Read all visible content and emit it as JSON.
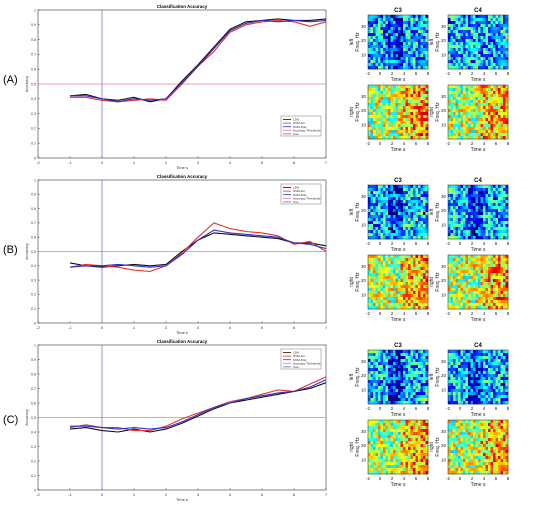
{
  "panel_labels": [
    "(A)",
    "(B)",
    "(C)"
  ],
  "chart_data": [
    {
      "type": "line",
      "panel": "(A)",
      "title": "Classification Accuracy",
      "xlabel": "Time s",
      "ylabel": "Accuracy",
      "xlim": [
        -2,
        7
      ],
      "ylim": [
        0,
        1
      ],
      "xticks": [
        -2,
        -1,
        0,
        1,
        2,
        3,
        4,
        5,
        6,
        7
      ],
      "yticks": [
        0,
        0.1,
        0.2,
        0.3,
        0.4,
        0.5,
        0.6,
        0.7,
        0.8,
        0.9,
        1
      ],
      "cue_x": 0,
      "threshold_y": 0.5,
      "legend": [
        "LDA",
        "SVM-Lin",
        "SVM-Poly",
        "Accuracy Threshold",
        "Cue"
      ],
      "legend_position": "lower right",
      "x": [
        -1,
        -0.5,
        0,
        0.5,
        1,
        1.5,
        2,
        2.5,
        3,
        3.5,
        4,
        4.5,
        5,
        5.5,
        6,
        6.5,
        7
      ],
      "series": [
        {
          "name": "LDA",
          "color": "#111111",
          "values": [
            0.42,
            0.43,
            0.4,
            0.39,
            0.41,
            0.38,
            0.4,
            0.52,
            0.63,
            0.75,
            0.87,
            0.92,
            0.93,
            0.94,
            0.93,
            0.93,
            0.94
          ]
        },
        {
          "name": "SVM-Lin",
          "color": "#e8302a",
          "values": [
            0.41,
            0.41,
            0.39,
            0.38,
            0.39,
            0.4,
            0.39,
            0.5,
            0.62,
            0.72,
            0.85,
            0.9,
            0.92,
            0.93,
            0.92,
            0.89,
            0.92
          ]
        },
        {
          "name": "SVM-Poly",
          "color": "#2f2fd6",
          "values": [
            0.42,
            0.42,
            0.4,
            0.38,
            0.4,
            0.39,
            0.4,
            0.51,
            0.62,
            0.74,
            0.86,
            0.91,
            0.93,
            0.92,
            0.93,
            0.92,
            0.93
          ]
        }
      ]
    },
    {
      "type": "line",
      "panel": "(B)",
      "title": "Classification Accuracy",
      "xlabel": "Time s",
      "ylabel": "Accuracy",
      "xlim": [
        -2,
        7
      ],
      "ylim": [
        0,
        1
      ],
      "xticks": [
        -2,
        -1,
        0,
        1,
        2,
        3,
        4,
        5,
        6,
        7
      ],
      "yticks": [
        0,
        0.1,
        0.2,
        0.3,
        0.4,
        0.5,
        0.6,
        0.7,
        0.8,
        0.9,
        1
      ],
      "cue_x": 0,
      "threshold_y": 0.5,
      "legend": [
        "LDA",
        "SVM-Lin",
        "SVM-Poly",
        "Accuracy Threshold",
        "Cue"
      ],
      "legend_position": "top right",
      "x": [
        -1,
        -0.5,
        0,
        0.5,
        1,
        1.5,
        2,
        2.5,
        3,
        3.5,
        4,
        4.5,
        5,
        5.5,
        6,
        6.5,
        7
      ],
      "series": [
        {
          "name": "LDA",
          "color": "#111111",
          "values": [
            0.42,
            0.4,
            0.39,
            0.4,
            0.41,
            0.4,
            0.41,
            0.5,
            0.58,
            0.63,
            0.62,
            0.61,
            0.6,
            0.59,
            0.56,
            0.56,
            0.54
          ]
        },
        {
          "name": "SVM-Lin",
          "color": "#e8302a",
          "values": [
            0.39,
            0.41,
            0.4,
            0.39,
            0.37,
            0.36,
            0.4,
            0.49,
            0.6,
            0.7,
            0.66,
            0.64,
            0.63,
            0.61,
            0.55,
            0.57,
            0.5
          ]
        },
        {
          "name": "SVM-Poly",
          "color": "#2f2fd6",
          "values": [
            0.39,
            0.4,
            0.4,
            0.41,
            0.4,
            0.39,
            0.4,
            0.48,
            0.58,
            0.65,
            0.63,
            0.62,
            0.61,
            0.6,
            0.56,
            0.55,
            0.52
          ]
        }
      ]
    },
    {
      "type": "line",
      "panel": "(C)",
      "title": "Classification Accuracy",
      "xlabel": "Time s",
      "ylabel": "Accuracy",
      "xlim": [
        -2,
        7
      ],
      "ylim": [
        0,
        1
      ],
      "xticks": [
        -2,
        -1,
        0,
        1,
        2,
        3,
        4,
        5,
        6,
        7
      ],
      "yticks": [
        0,
        0.1,
        0.2,
        0.3,
        0.4,
        0.5,
        0.6,
        0.7,
        0.8,
        0.9,
        1
      ],
      "cue_x": 0,
      "threshold_y": 0.5,
      "legend": [
        "LDA",
        "SVM-Lin",
        "SVM-Poly",
        "Accuracy Threshold",
        "Cue"
      ],
      "legend_position": "top right",
      "x": [
        -1,
        -0.5,
        0,
        0.5,
        1,
        1.5,
        2,
        2.5,
        3,
        3.5,
        4,
        4.5,
        5,
        5.5,
        6,
        6.5,
        7
      ],
      "series": [
        {
          "name": "LDA",
          "color": "#111111",
          "values": [
            0.42,
            0.43,
            0.41,
            0.4,
            0.42,
            0.4,
            0.42,
            0.46,
            0.51,
            0.56,
            0.6,
            0.62,
            0.64,
            0.66,
            0.68,
            0.7,
            0.74
          ]
        },
        {
          "name": "SVM-Lin",
          "color": "#e8302a",
          "values": [
            0.43,
            0.45,
            0.43,
            0.43,
            0.41,
            0.41,
            0.44,
            0.49,
            0.53,
            0.57,
            0.61,
            0.63,
            0.66,
            0.69,
            0.68,
            0.73,
            0.78
          ]
        },
        {
          "name": "SVM-Poly",
          "color": "#2f2fd6",
          "values": [
            0.44,
            0.44,
            0.43,
            0.42,
            0.43,
            0.42,
            0.43,
            0.47,
            0.52,
            0.57,
            0.6,
            0.63,
            0.65,
            0.67,
            0.68,
            0.71,
            0.76
          ]
        }
      ]
    },
    {
      "type": "heatmap",
      "panels": [
        {
          "panel": "(A)",
          "channels": [
            {
              "title": "C3"
            },
            {
              "title": "C4"
            }
          ]
        },
        {
          "panel": "(B)",
          "channels": [
            {
              "title": "C3"
            },
            {
              "title": "C4"
            }
          ]
        },
        {
          "panel": "(C)",
          "channels": [
            {
              "title": "C3"
            },
            {
              "title": "C4"
            }
          ]
        }
      ],
      "row_labels": [
        "left",
        "right"
      ],
      "ylabel": "Freq. Hz",
      "xlabel": "Time s",
      "xticks": [
        -2,
        0,
        2,
        4,
        6,
        8
      ],
      "yticks": [
        10,
        20,
        30
      ],
      "colormap": "jet"
    }
  ]
}
